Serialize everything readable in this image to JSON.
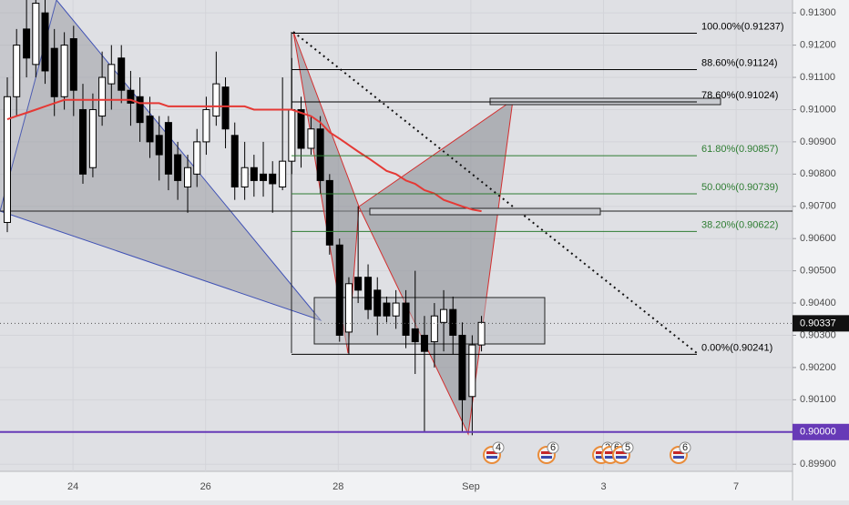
{
  "chart_data": {
    "type": "candlestick",
    "x": [
      -0.99,
      -0.85,
      -0.7,
      -0.56,
      -0.42,
      -0.28,
      -0.13,
      0.01,
      0.15,
      0.3,
      0.44,
      0.58,
      0.73,
      0.87,
      1.01,
      1.16,
      1.3,
      1.44,
      1.58,
      1.73,
      1.87,
      2.01,
      2.16,
      2.3,
      2.44,
      2.59,
      2.73,
      2.87,
      3.01,
      3.16,
      3.3,
      3.44,
      3.59,
      3.73,
      3.87,
      4.02,
      4.16,
      4.3,
      4.45,
      4.59,
      4.73,
      4.87,
      5.02,
      5.16,
      5.3,
      5.45,
      5.59,
      5.73,
      5.87,
      6.02,
      6.16
    ],
    "ohlc": [
      [
        0.9065,
        0.911,
        0.9062,
        0.9104
      ],
      [
        0.9104,
        0.9125,
        0.9098,
        0.912
      ],
      [
        0.9125,
        0.9135,
        0.911,
        0.9116
      ],
      [
        0.9114,
        0.9138,
        0.911,
        0.9133
      ],
      [
        0.913,
        0.9135,
        0.9108,
        0.9112
      ],
      [
        0.9119,
        0.9125,
        0.9098,
        0.9104
      ],
      [
        0.9104,
        0.9124,
        0.91,
        0.912
      ],
      [
        0.9122,
        0.9126,
        0.9098,
        0.9106
      ],
      [
        0.91,
        0.9108,
        0.9077,
        0.908
      ],
      [
        0.9082,
        0.9105,
        0.9079,
        0.91
      ],
      [
        0.9098,
        0.9118,
        0.9095,
        0.911
      ],
      [
        0.9108,
        0.912,
        0.91,
        0.9114
      ],
      [
        0.9116,
        0.912,
        0.9102,
        0.9106
      ],
      [
        0.9106,
        0.9112,
        0.9095,
        0.9102
      ],
      [
        0.9104,
        0.911,
        0.909,
        0.9096
      ],
      [
        0.9098,
        0.9104,
        0.9085,
        0.909
      ],
      [
        0.9092,
        0.9098,
        0.9078,
        0.9086
      ],
      [
        0.9096,
        0.9098,
        0.9075,
        0.908
      ],
      [
        0.9086,
        0.909,
        0.9072,
        0.9078
      ],
      [
        0.9076,
        0.9086,
        0.9068,
        0.9082
      ],
      [
        0.908,
        0.9094,
        0.9076,
        0.909
      ],
      [
        0.909,
        0.9104,
        0.9086,
        0.91
      ],
      [
        0.9098,
        0.9118,
        0.9095,
        0.9108
      ],
      [
        0.9107,
        0.911,
        0.9088,
        0.9094
      ],
      [
        0.9092,
        0.9096,
        0.9072,
        0.9076
      ],
      [
        0.9076,
        0.909,
        0.9072,
        0.9082
      ],
      [
        0.9082,
        0.9086,
        0.9073,
        0.9078
      ],
      [
        0.908,
        0.909,
        0.9073,
        0.9078
      ],
      [
        0.908,
        0.9084,
        0.9068,
        0.9077
      ],
      [
        0.9076,
        0.911,
        0.9075,
        0.9084
      ],
      [
        0.9084,
        0.9116,
        0.908,
        0.91
      ],
      [
        0.91,
        0.9104,
        0.9082,
        0.9088
      ],
      [
        0.9088,
        0.9098,
        0.9086,
        0.9094
      ],
      [
        0.9094,
        0.9098,
        0.9074,
        0.9078
      ],
      [
        0.9078,
        0.908,
        0.9055,
        0.9058
      ],
      [
        0.9058,
        0.906,
        0.9028,
        0.903
      ],
      [
        0.9031,
        0.9048,
        0.9024,
        0.9046
      ],
      [
        0.9048,
        0.907,
        0.904,
        0.9044
      ],
      [
        0.9048,
        0.9052,
        0.9035,
        0.9038
      ],
      [
        0.9044,
        0.9048,
        0.903,
        0.9036
      ],
      [
        0.904,
        0.9042,
        0.9034,
        0.9036
      ],
      [
        0.9036,
        0.9044,
        0.9032,
        0.904
      ],
      [
        0.904,
        0.9044,
        0.9026,
        0.903
      ],
      [
        0.9032,
        0.905,
        0.9018,
        0.9028
      ],
      [
        0.903,
        0.9036,
        0.9,
        0.9025
      ],
      [
        0.9028,
        0.904,
        0.902,
        0.9036
      ],
      [
        0.9034,
        0.9044,
        0.9025,
        0.9038
      ],
      [
        0.9038,
        0.9042,
        0.9024,
        0.903
      ],
      [
        0.903,
        0.9034,
        0.9,
        0.901
      ],
      [
        0.9011,
        0.903,
        0.8999,
        0.9027
      ],
      [
        0.9027,
        0.9036,
        0.9025,
        0.9034
      ]
    ],
    "up_color": "#ffffff",
    "down_color": "#000000",
    "ma": {
      "color": "#e53935",
      "values": [
        0.9097,
        0.9098,
        0.9099,
        0.91,
        0.9101,
        0.9102,
        0.9103,
        0.9103,
        0.9103,
        0.9103,
        0.9103,
        0.9103,
        0.9103,
        0.9103,
        0.9102,
        0.9102,
        0.9102,
        0.9101,
        0.9101,
        0.9101,
        0.9101,
        0.9101,
        0.9101,
        0.9101,
        0.9101,
        0.9101,
        0.91,
        0.91,
        0.91,
        0.91,
        0.91,
        0.9099,
        0.9098,
        0.9096,
        0.9093,
        0.9091,
        0.9089,
        0.9087,
        0.9085,
        0.9083,
        0.9081,
        0.908,
        0.9078,
        0.9077,
        0.9075,
        0.9074,
        0.9072,
        0.9071,
        0.907,
        0.9069,
        0.90685
      ]
    },
    "xlim": [
      -1.1,
      10.85
    ],
    "xticks": [
      {
        "value": 0,
        "label": "24"
      },
      {
        "value": 2,
        "label": "26"
      },
      {
        "value": 4,
        "label": "28"
      },
      {
        "value": 6,
        "label": "Sep"
      },
      {
        "value": 8,
        "label": "3"
      },
      {
        "value": 10,
        "label": "7"
      }
    ],
    "ylim": [
      0.89878,
      0.9134
    ],
    "yticks": [
      {
        "value": 0.913,
        "label": "0.91300"
      },
      {
        "value": 0.912,
        "label": "0.91200"
      },
      {
        "value": 0.911,
        "label": "0.91100"
      },
      {
        "value": 0.91,
        "label": "0.91000"
      },
      {
        "value": 0.909,
        "label": "0.90900"
      },
      {
        "value": 0.908,
        "label": "0.90800"
      },
      {
        "value": 0.907,
        "label": "0.90700"
      },
      {
        "value": 0.906,
        "label": "0.90600"
      },
      {
        "value": 0.905,
        "label": "0.90500"
      },
      {
        "value": 0.904,
        "label": "0.90400"
      },
      {
        "value": 0.903,
        "label": "0.90300"
      },
      {
        "value": 0.902,
        "label": "0.90200"
      },
      {
        "value": 0.901,
        "label": "0.90100"
      },
      {
        "value": 0.9,
        "label": "0.90000"
      },
      {
        "value": 0.899,
        "label": "0.89900"
      }
    ],
    "grid": true,
    "fib_levels": [
      {
        "value": 0.91237,
        "label": "100.00%(0.91237)",
        "color": "#000000"
      },
      {
        "value": 0.91124,
        "label": "88.60%(0.91124)",
        "color": "#000000"
      },
      {
        "value": 0.91024,
        "label": "78.60%(0.91024)",
        "color": "#000000"
      },
      {
        "value": 0.90857,
        "label": "61.80%(0.90857)",
        "color": "#2e7d32"
      },
      {
        "value": 0.90739,
        "label": "50.00%(0.90739)",
        "color": "#2e7d32"
      },
      {
        "value": 0.90622,
        "label": "38.20%(0.90622)",
        "color": "#2e7d32"
      },
      {
        "value": 0.90241,
        "label": "0.00%(0.90241)",
        "color": "#000000"
      }
    ],
    "current_price": {
      "value": 0.90337,
      "label": "0.90337"
    },
    "support_level": {
      "value": 0.9,
      "label": "0.90000",
      "color": "#673ab7"
    },
    "events": [
      4,
      6,
      3,
      6,
      5,
      6
    ]
  }
}
